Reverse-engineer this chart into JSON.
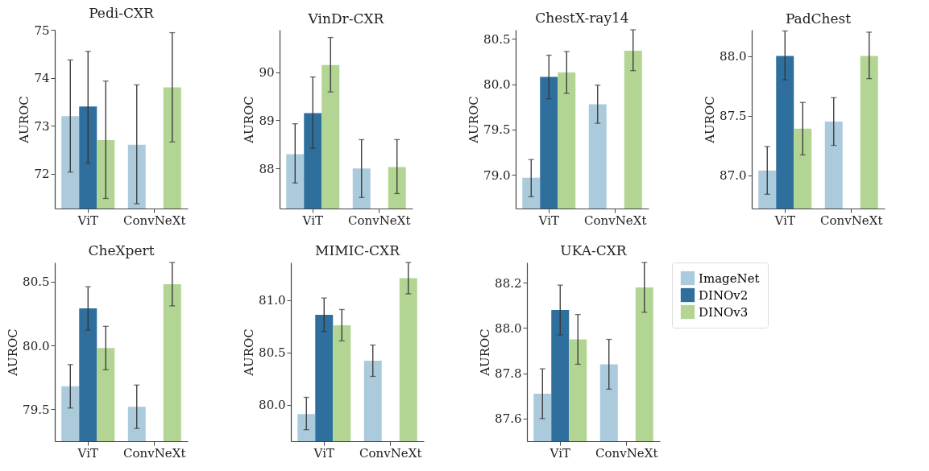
{
  "chart_data": [
    {
      "type": "bar",
      "title": "Pedi-CXR",
      "ylabel": "AUROC",
      "categories": [
        "ViT",
        "ConvNeXt"
      ],
      "ylim": [
        71.27,
        75.0
      ],
      "yticks": [
        72,
        73,
        74,
        75
      ],
      "grid": false,
      "legend": false,
      "series": [
        {
          "color": "#abcbdd",
          "values": [
            73.2,
            72.6
          ],
          "errors": [
            [
              72.03,
              74.37
            ],
            [
              71.37,
              73.85
            ]
          ]
        },
        {
          "color": "#2e6f9e",
          "values": [
            73.4,
            null
          ],
          "errors": [
            [
              72.22,
              74.55
            ],
            null
          ]
        },
        {
          "color": "#b3d593",
          "values": [
            72.7,
            73.8
          ],
          "errors": [
            [
              71.48,
              73.93
            ],
            [
              72.66,
              74.94
            ]
          ]
        }
      ]
    },
    {
      "type": "bar",
      "title": "VinDr-CXR",
      "ylabel": "AUROC",
      "categories": [
        "ViT",
        "ConvNeXt"
      ],
      "ylim": [
        87.17,
        90.88
      ],
      "yticks": [
        88,
        89,
        90
      ],
      "grid": false,
      "legend": false,
      "series": [
        {
          "color": "#abcbdd",
          "values": [
            88.3,
            88.0
          ],
          "errors": [
            [
              87.7,
              88.93
            ],
            [
              87.4,
              88.6
            ]
          ]
        },
        {
          "color": "#2e6f9e",
          "values": [
            89.15,
            null
          ],
          "errors": [
            [
              88.42,
              89.9
            ],
            null
          ]
        },
        {
          "color": "#b3d593",
          "values": [
            90.15,
            88.03
          ],
          "errors": [
            [
              89.59,
              90.72
            ],
            [
              87.48,
              88.6
            ]
          ]
        }
      ]
    },
    {
      "type": "bar",
      "title": "ChestX-ray14",
      "ylabel": "AUROC",
      "categories": [
        "ViT",
        "ConvNeXt"
      ],
      "ylim": [
        78.63,
        80.6
      ],
      "yticks": [
        {
          "value": 79,
          "label": "79.0"
        },
        79.5,
        {
          "value": 80,
          "label": "80.0"
        },
        80.5
      ],
      "grid": false,
      "legend": false,
      "series": [
        {
          "color": "#abcbdd",
          "values": [
            78.97,
            79.78
          ],
          "errors": [
            [
              78.76,
              79.17
            ],
            [
              79.57,
              79.99
            ]
          ]
        },
        {
          "color": "#2e6f9e",
          "values": [
            80.08,
            null
          ],
          "errors": [
            [
              79.84,
              80.32
            ],
            null
          ]
        },
        {
          "color": "#b3d593",
          "values": [
            80.13,
            80.37
          ],
          "errors": [
            [
              79.9,
              80.36
            ],
            [
              80.15,
              80.6
            ]
          ]
        }
      ]
    },
    {
      "type": "bar",
      "title": "PadChest",
      "ylabel": "AUROC",
      "categories": [
        "ViT",
        "ConvNeXt"
      ],
      "ylim": [
        86.72,
        88.22
      ],
      "yticks": [
        {
          "value": 87,
          "label": "87.0"
        },
        87.5,
        {
          "value": 88,
          "label": "88.0"
        }
      ],
      "grid": false,
      "legend": false,
      "series": [
        {
          "color": "#abcbdd",
          "values": [
            87.04,
            87.45
          ],
          "errors": [
            [
              86.84,
              87.24
            ],
            [
              87.25,
              87.65
            ]
          ]
        },
        {
          "color": "#2e6f9e",
          "values": [
            88.0,
            null
          ],
          "errors": [
            [
              87.8,
              88.21
            ],
            null
          ]
        },
        {
          "color": "#b3d593",
          "values": [
            87.39,
            88.0
          ],
          "errors": [
            [
              87.17,
              87.61
            ],
            [
              87.81,
              88.2
            ]
          ]
        }
      ]
    },
    {
      "type": "bar",
      "title": "CheXpert",
      "ylabel": "AUROC",
      "categories": [
        "ViT",
        "ConvNeXt"
      ],
      "ylim": [
        79.25,
        80.65
      ],
      "yticks": [
        79.5,
        {
          "value": 80,
          "label": "80.0"
        },
        80.5
      ],
      "grid": false,
      "legend": false,
      "series": [
        {
          "color": "#abcbdd",
          "values": [
            79.68,
            79.52
          ],
          "errors": [
            [
              79.51,
              79.85
            ],
            [
              79.35,
              79.69
            ]
          ]
        },
        {
          "color": "#2e6f9e",
          "values": [
            80.29,
            null
          ],
          "errors": [
            [
              80.12,
              80.46
            ],
            null
          ]
        },
        {
          "color": "#b3d593",
          "values": [
            79.98,
            80.48
          ],
          "errors": [
            [
              79.81,
              80.15
            ],
            [
              80.31,
              80.65
            ]
          ]
        }
      ]
    },
    {
      "type": "bar",
      "title": "MIMIC-CXR",
      "ylabel": "AUROC",
      "categories": [
        "ViT",
        "ConvNeXt"
      ],
      "ylim": [
        79.65,
        81.36
      ],
      "yticks": [
        {
          "value": 80,
          "label": "80.0"
        },
        80.5,
        {
          "value": 81,
          "label": "81.0"
        }
      ],
      "grid": false,
      "legend": false,
      "series": [
        {
          "color": "#abcbdd",
          "values": [
            79.91,
            80.42
          ],
          "errors": [
            [
              79.76,
              80.07
            ],
            [
              80.27,
              80.57
            ]
          ]
        },
        {
          "color": "#2e6f9e",
          "values": [
            80.86,
            null
          ],
          "errors": [
            [
              80.7,
              81.02
            ],
            null
          ]
        },
        {
          "color": "#b3d593",
          "values": [
            80.76,
            81.21
          ],
          "errors": [
            [
              80.61,
              80.91
            ],
            [
              81.06,
              81.36
            ]
          ]
        }
      ]
    },
    {
      "type": "bar",
      "title": "UKA-CXR",
      "ylabel": "AUROC",
      "categories": [
        "ViT",
        "ConvNeXt"
      ],
      "ylim": [
        87.5,
        88.29
      ],
      "yticks": [
        87.6,
        87.8,
        {
          "value": 88,
          "label": "88.0"
        },
        88.2
      ],
      "grid": false,
      "legend": "right",
      "series": [
        {
          "name": "ImageNet",
          "color": "#abcbdd",
          "values": [
            87.71,
            87.84
          ],
          "errors": [
            [
              87.6,
              87.82
            ],
            [
              87.73,
              87.95
            ]
          ]
        },
        {
          "name": "DINOv2",
          "color": "#2e6f9e",
          "values": [
            88.08,
            null
          ],
          "errors": [
            [
              87.97,
              88.19
            ],
            null
          ]
        },
        {
          "name": "DINOv3",
          "color": "#b3d593",
          "values": [
            87.95,
            88.18
          ],
          "errors": [
            [
              87.84,
              88.06
            ],
            [
              88.07,
              88.29
            ]
          ]
        }
      ]
    }
  ]
}
